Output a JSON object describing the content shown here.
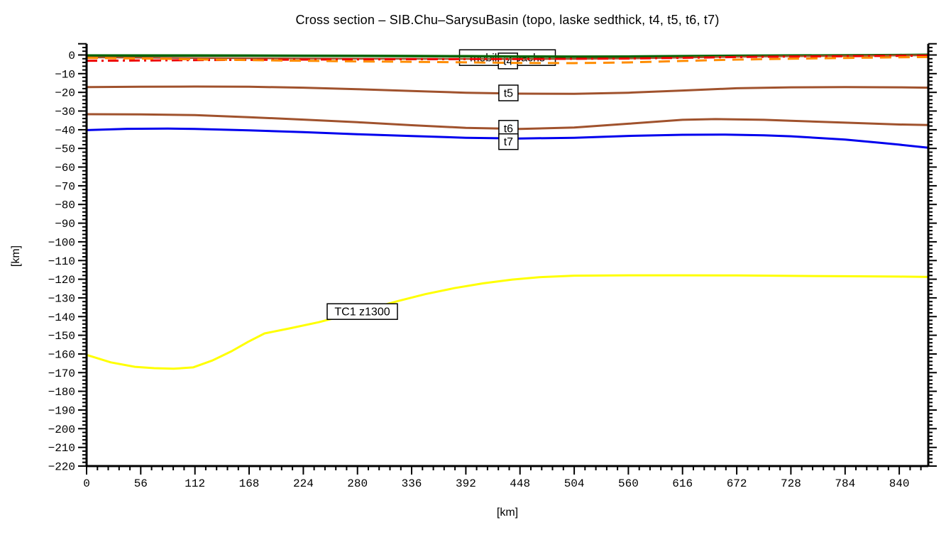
{
  "title": "Cross section – SIB.Chu–SarysuBasin (topo, laske sedthick, t4, t5, t6, t7)",
  "xlabel": "[km]",
  "ylabel": "[km]",
  "chart_data": {
    "type": "line",
    "title": "Cross section – SIB.Chu–SarysuBasin (topo, laske sedthick, t4, t5, t6, t7)",
    "xlabel": "[km]",
    "ylabel": "[km]",
    "xlim": [
      0,
      870
    ],
    "ylim": [
      -220,
      6
    ],
    "grid": false,
    "legend": "none",
    "x_tick_major": 56,
    "x_tick_minor": 11.2,
    "y_tick_major": 10,
    "y_tick_minor": 2,
    "x_tick_labels": [
      0,
      56,
      112,
      168,
      224,
      280,
      336,
      392,
      448,
      504,
      560,
      616,
      672,
      728,
      784,
      840
    ],
    "y_tick_labels": [
      0,
      -10,
      -20,
      -30,
      -40,
      -50,
      -60,
      -70,
      -80,
      -90,
      -100,
      -110,
      -120,
      -130,
      -140,
      -150,
      -160,
      -170,
      -180,
      -190,
      -200,
      -210,
      -220
    ],
    "series": [
      {
        "name": "topo",
        "color": "#006400",
        "style": "solid",
        "width": 3.5,
        "points": [
          [
            0,
            -0.3
          ],
          [
            56,
            -0.3
          ],
          [
            112,
            -0.3
          ],
          [
            168,
            -0.35
          ],
          [
            224,
            -0.4
          ],
          [
            280,
            -0.45
          ],
          [
            336,
            -0.55
          ],
          [
            392,
            -0.7
          ],
          [
            448,
            -0.85
          ],
          [
            504,
            -0.9
          ],
          [
            560,
            -0.85
          ],
          [
            616,
            -0.6
          ],
          [
            672,
            -0.4
          ],
          [
            728,
            -0.3
          ],
          [
            784,
            -0.2
          ],
          [
            840,
            -0.05
          ],
          [
            870,
            0.1
          ]
        ]
      },
      {
        "name": "mobil-isopach",
        "color": "#a0522d",
        "style": "solid",
        "width": 2.5,
        "points": [
          [
            0,
            -1.3
          ],
          [
            56,
            -1.45
          ],
          [
            112,
            -1.6
          ],
          [
            168,
            -1.75
          ],
          [
            224,
            -1.9
          ],
          [
            280,
            -2.0
          ],
          [
            336,
            -2.05
          ],
          [
            392,
            -2.1
          ],
          [
            448,
            -2.15
          ],
          [
            504,
            -2.1
          ],
          [
            560,
            -1.85
          ],
          [
            616,
            -1.35
          ],
          [
            672,
            -0.95
          ],
          [
            728,
            -0.7
          ],
          [
            784,
            -0.45
          ],
          [
            840,
            -0.2
          ],
          [
            870,
            -0.1
          ]
        ]
      },
      {
        "name": "laske-sedthick",
        "color": "#ee0000",
        "style": "dashdot",
        "width": 3,
        "points": [
          [
            0,
            -3.1
          ],
          [
            56,
            -2.95
          ],
          [
            112,
            -2.75
          ],
          [
            168,
            -2.6
          ],
          [
            224,
            -2.45
          ],
          [
            280,
            -2.35
          ],
          [
            336,
            -2.25
          ],
          [
            392,
            -2.2
          ],
          [
            448,
            -2.15
          ],
          [
            504,
            -2.05
          ],
          [
            560,
            -1.9
          ],
          [
            616,
            -1.5
          ],
          [
            672,
            -1.1
          ],
          [
            728,
            -0.85
          ],
          [
            784,
            -0.65
          ],
          [
            840,
            -0.45
          ],
          [
            870,
            -0.4
          ]
        ]
      },
      {
        "name": "t4",
        "color": "#ff8c00",
        "style": "dashed",
        "width": 3,
        "points": [
          [
            0,
            -1.55
          ],
          [
            56,
            -1.9
          ],
          [
            112,
            -2.35
          ],
          [
            168,
            -2.75
          ],
          [
            224,
            -3.1
          ],
          [
            280,
            -3.4
          ],
          [
            336,
            -3.65
          ],
          [
            392,
            -3.95
          ],
          [
            448,
            -4.25
          ],
          [
            504,
            -4.35
          ],
          [
            560,
            -4.0
          ],
          [
            616,
            -3.2
          ],
          [
            672,
            -2.45
          ],
          [
            728,
            -2.0
          ],
          [
            784,
            -1.6
          ],
          [
            840,
            -1.25
          ],
          [
            870,
            -1.1
          ]
        ]
      },
      {
        "name": "t5",
        "color": "#a0522d",
        "style": "solid",
        "width": 3,
        "points": [
          [
            0,
            -17.2
          ],
          [
            56,
            -17.0
          ],
          [
            112,
            -16.9
          ],
          [
            168,
            -17.0
          ],
          [
            224,
            -17.5
          ],
          [
            280,
            -18.3
          ],
          [
            336,
            -19.3
          ],
          [
            392,
            -20.2
          ],
          [
            448,
            -20.7
          ],
          [
            504,
            -20.8
          ],
          [
            560,
            -20.2
          ],
          [
            616,
            -19.0
          ],
          [
            672,
            -17.8
          ],
          [
            728,
            -17.3
          ],
          [
            784,
            -17.2
          ],
          [
            840,
            -17.3
          ],
          [
            870,
            -17.5
          ]
        ]
      },
      {
        "name": "t6",
        "color": "#a0522d",
        "style": "solid",
        "width": 3,
        "points": [
          [
            0,
            -31.7
          ],
          [
            56,
            -31.8
          ],
          [
            112,
            -32.2
          ],
          [
            168,
            -33.3
          ],
          [
            224,
            -34.6
          ],
          [
            280,
            -36.0
          ],
          [
            336,
            -37.6
          ],
          [
            392,
            -39.0
          ],
          [
            448,
            -39.6
          ],
          [
            504,
            -38.8
          ],
          [
            560,
            -36.8
          ],
          [
            616,
            -34.7
          ],
          [
            650,
            -34.3
          ],
          [
            700,
            -34.7
          ],
          [
            728,
            -35.2
          ],
          [
            784,
            -36.2
          ],
          [
            840,
            -37.2
          ],
          [
            870,
            -37.5
          ]
        ]
      },
      {
        "name": "t7",
        "color": "#0000ee",
        "style": "solid",
        "width": 3,
        "points": [
          [
            0,
            -40.2
          ],
          [
            42,
            -39.5
          ],
          [
            84,
            -39.4
          ],
          [
            112,
            -39.6
          ],
          [
            168,
            -40.3
          ],
          [
            224,
            -41.3
          ],
          [
            280,
            -42.4
          ],
          [
            336,
            -43.4
          ],
          [
            392,
            -44.3
          ],
          [
            448,
            -44.7
          ],
          [
            504,
            -44.3
          ],
          [
            560,
            -43.3
          ],
          [
            616,
            -42.7
          ],
          [
            660,
            -42.6
          ],
          [
            700,
            -43.0
          ],
          [
            728,
            -43.5
          ],
          [
            784,
            -45.3
          ],
          [
            820,
            -47.0
          ],
          [
            840,
            -48.0
          ],
          [
            870,
            -49.6
          ]
        ]
      },
      {
        "name": "TC1-z1300",
        "color": "#ffff00",
        "style": "solid",
        "width": 3,
        "points": [
          [
            0,
            -160.5
          ],
          [
            25,
            -164.5
          ],
          [
            50,
            -166.9
          ],
          [
            70,
            -167.6
          ],
          [
            90,
            -167.9
          ],
          [
            110,
            -167.2
          ],
          [
            130,
            -163.5
          ],
          [
            150,
            -158.5
          ],
          [
            167,
            -153.5
          ],
          [
            184,
            -149.0
          ],
          [
            210,
            -146.3
          ],
          [
            240,
            -143.0
          ],
          [
            270,
            -139.0
          ],
          [
            300,
            -134.8
          ],
          [
            321,
            -131.8
          ],
          [
            350,
            -128.0
          ],
          [
            380,
            -124.8
          ],
          [
            410,
            -122.2
          ],
          [
            440,
            -120.2
          ],
          [
            468,
            -118.9
          ],
          [
            504,
            -118.1
          ],
          [
            560,
            -117.9
          ],
          [
            616,
            -117.9
          ],
          [
            672,
            -118.0
          ],
          [
            728,
            -118.2
          ],
          [
            784,
            -118.4
          ],
          [
            840,
            -118.6
          ],
          [
            870,
            -118.8
          ]
        ]
      }
    ],
    "labels": [
      {
        "text": "mobil isopachs",
        "x": 435,
        "y": -1.4,
        "layer": "below"
      },
      {
        "text": "t4",
        "x": 435.5,
        "y": -3.2,
        "layer": "below"
      },
      {
        "text": "t5",
        "x": 436,
        "y": -20.3,
        "layer": "above"
      },
      {
        "text": "t6",
        "x": 436,
        "y": -39.2,
        "layer": "above"
      },
      {
        "text": "t7",
        "x": 436,
        "y": -46.4,
        "layer": "above"
      },
      {
        "text": "TC1  z1300",
        "x": 285,
        "y": -137.3,
        "layer": "above"
      }
    ]
  }
}
